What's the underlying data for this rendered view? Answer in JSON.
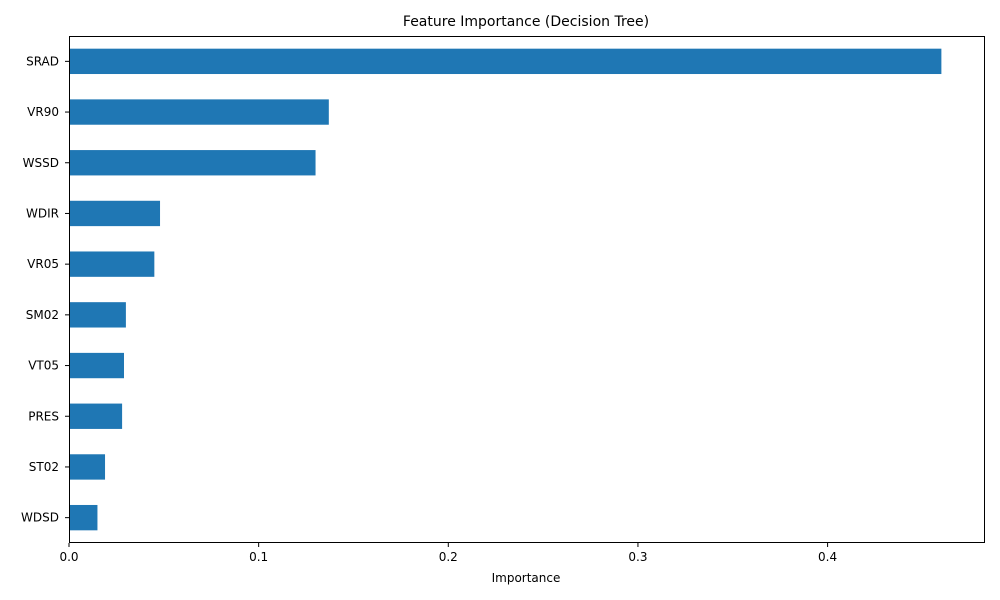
{
  "chart_data": {
    "type": "bar",
    "orientation": "horizontal",
    "title": "Feature Importance (Decision Tree)",
    "xlabel": "Importance",
    "ylabel": "",
    "categories": [
      "SRAD",
      "VR90",
      "WSSD",
      "WDIR",
      "VR05",
      "SM02",
      "VT05",
      "PRES",
      "ST02",
      "WDSD"
    ],
    "values": [
      0.46,
      0.137,
      0.13,
      0.048,
      0.045,
      0.03,
      0.029,
      0.028,
      0.019,
      0.015
    ],
    "xlim": [
      0,
      0.483
    ],
    "xticks": [
      0.0,
      0.1,
      0.2,
      0.3,
      0.4
    ],
    "xtick_labels": [
      "0.0",
      "0.1",
      "0.2",
      "0.3",
      "0.4"
    ],
    "grid": false,
    "legend": "none",
    "bar_color": "#1f77b4"
  }
}
